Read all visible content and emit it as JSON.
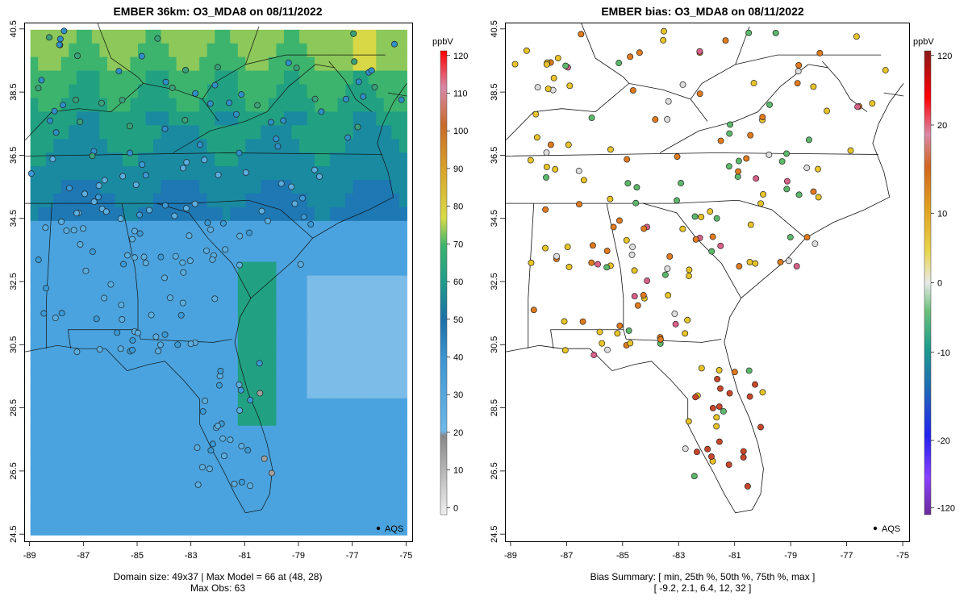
{
  "left": {
    "title": "EMBER 36km: O3_MDA8 on 08/11/2022",
    "footer_line1": "Domain size: 49x37 | Max Model = 66 at (48, 28)",
    "footer_line2": "Max Obs: 63",
    "legend_label": "AQS",
    "colorbar": {
      "unit": "ppbV",
      "ticks": [
        "0",
        "10",
        "20",
        "30",
        "40",
        "50",
        "60",
        "70",
        "80",
        "90",
        "100",
        "110",
        "120"
      ]
    }
  },
  "right": {
    "title": "EMBER bias: O3_MDA8 on 08/11/2022",
    "footer_line1": "Bias Summary: [ min, 25th %, 50th %, 75th %, max ]",
    "footer_line2": "[ -9.2,   2.1,   6.4,   12,   32 ]",
    "legend_label": "AQS",
    "colorbar": {
      "unit": "ppbV",
      "ticks": [
        "-120",
        "-20",
        "-10",
        "0",
        "10",
        "20",
        "120"
      ]
    }
  },
  "axes": {
    "x_ticks": [
      "-89",
      "-87",
      "-85",
      "-83",
      "-81",
      "-79",
      "-77",
      "-75"
    ],
    "y_ticks": [
      "24.5",
      "26.5",
      "28.5",
      "30.5",
      "32.5",
      "34.5",
      "36.5",
      "38.5",
      "40.5"
    ]
  },
  "colors": {
    "ozone_low": "#5aaee0",
    "ozone_mid": "#1e78b4",
    "ozone_high": "#3cb46e",
    "ozone_peak": "#d8d846",
    "bias_neg": "#5cb86a",
    "bias_zero": "#dddddd",
    "bias_pos": "#e8c428",
    "bias_high": "#e07a1e"
  }
}
